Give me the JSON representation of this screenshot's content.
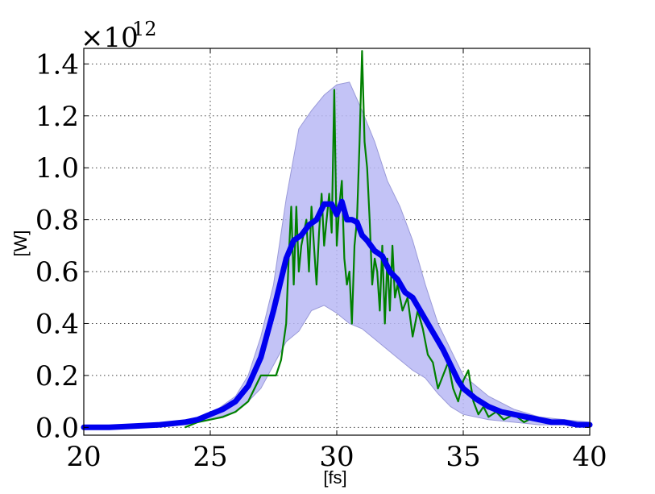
{
  "chart_data": {
    "type": "line",
    "title": "",
    "xlabel": "[fs]",
    "ylabel": "[W]",
    "y_offset_label": "×10",
    "y_offset_exponent": "12",
    "xlim": [
      20,
      40
    ],
    "ylim": [
      -0.03,
      1.46
    ],
    "xticks": [
      20,
      25,
      30,
      35,
      40
    ],
    "xtick_labels": [
      "20",
      "25",
      "30",
      "35",
      "40"
    ],
    "yticks": [
      0.0,
      0.2,
      0.4,
      0.6,
      0.8,
      1.0,
      1.2,
      1.4
    ],
    "ytick_labels": [
      "0.0",
      "0.2",
      "0.4",
      "0.6",
      "0.8",
      "1.0",
      "1.2",
      "1.4"
    ],
    "grid": true,
    "colors": {
      "band": "#b8b8f5",
      "mean": "#0000ee",
      "single": "#008000"
    },
    "series": [
      {
        "role": "band",
        "x": [
          20,
          22,
          24,
          25,
          26,
          26.5,
          27,
          27.5,
          28,
          28.5,
          29,
          29.5,
          30,
          30.5,
          31,
          31.5,
          32,
          32.5,
          33,
          33.5,
          34,
          34.5,
          35,
          36,
          37,
          38,
          39,
          40
        ],
        "lower": [
          0,
          0,
          0.01,
          0.03,
          0.06,
          0.1,
          0.15,
          0.24,
          0.33,
          0.37,
          0.45,
          0.47,
          0.44,
          0.4,
          0.38,
          0.34,
          0.3,
          0.26,
          0.22,
          0.19,
          0.13,
          0.08,
          0.05,
          0.03,
          0.02,
          0.01,
          0.01,
          0.01
        ],
        "upper": [
          0,
          0.01,
          0.02,
          0.05,
          0.12,
          0.2,
          0.35,
          0.55,
          0.88,
          1.15,
          1.22,
          1.28,
          1.32,
          1.33,
          1.22,
          1.1,
          0.95,
          0.85,
          0.72,
          0.55,
          0.4,
          0.3,
          0.2,
          0.12,
          0.07,
          0.04,
          0.03,
          0.02
        ]
      },
      {
        "role": "single",
        "x": [
          24.0,
          24.5,
          25.0,
          25.5,
          26.0,
          26.5,
          27.0,
          27.3,
          27.6,
          27.8,
          28.0,
          28.1,
          28.2,
          28.3,
          28.4,
          28.5,
          28.6,
          28.7,
          28.8,
          28.9,
          29.0,
          29.1,
          29.2,
          29.3,
          29.4,
          29.5,
          29.6,
          29.7,
          29.8,
          29.9,
          30.0,
          30.1,
          30.2,
          30.3,
          30.4,
          30.5,
          30.6,
          30.7,
          30.8,
          30.9,
          31.0,
          31.1,
          31.2,
          31.3,
          31.4,
          31.5,
          31.6,
          31.7,
          31.8,
          31.9,
          32.0,
          32.1,
          32.2,
          32.3,
          32.4,
          32.6,
          32.8,
          33.0,
          33.2,
          33.4,
          33.6,
          33.8,
          34.0,
          34.2,
          34.4,
          34.6,
          34.8,
          35.0,
          35.2,
          35.4,
          35.6,
          35.8,
          36.0,
          36.3,
          36.6,
          37.0,
          37.4,
          37.8,
          38.2,
          38.6,
          39.0,
          39.5,
          40.0
        ],
        "y": [
          0.0,
          0.02,
          0.03,
          0.04,
          0.06,
          0.1,
          0.2,
          0.2,
          0.2,
          0.26,
          0.4,
          0.65,
          0.85,
          0.55,
          0.85,
          0.6,
          0.7,
          0.75,
          0.8,
          0.6,
          0.85,
          0.7,
          0.55,
          0.75,
          0.9,
          0.7,
          0.8,
          0.9,
          0.75,
          1.3,
          0.7,
          0.85,
          0.95,
          0.65,
          0.55,
          0.6,
          0.4,
          0.7,
          0.8,
          1.1,
          1.45,
          1.1,
          1.0,
          0.8,
          0.55,
          0.65,
          0.6,
          0.45,
          0.7,
          0.4,
          0.65,
          0.45,
          0.7,
          0.5,
          0.55,
          0.45,
          0.5,
          0.35,
          0.45,
          0.38,
          0.28,
          0.25,
          0.15,
          0.2,
          0.25,
          0.15,
          0.1,
          0.18,
          0.22,
          0.1,
          0.05,
          0.08,
          0.04,
          0.06,
          0.03,
          0.05,
          0.02,
          0.04,
          0.03,
          0.02,
          0.02,
          0.01,
          0.01
        ]
      },
      {
        "role": "mean",
        "x": [
          20,
          21,
          22,
          23,
          24,
          24.5,
          25,
          25.5,
          26,
          26.5,
          27,
          27.5,
          28,
          28.3,
          28.6,
          28.9,
          29.2,
          29.5,
          29.8,
          30.0,
          30.2,
          30.4,
          30.6,
          30.8,
          31.0,
          31.2,
          31.5,
          31.8,
          32.1,
          32.4,
          32.7,
          33.0,
          33.3,
          33.6,
          33.9,
          34.2,
          34.5,
          34.8,
          35.0,
          35.5,
          36.0,
          36.5,
          37.0,
          37.5,
          38.0,
          38.5,
          39.0,
          39.5,
          40.0
        ],
        "y": [
          0.0,
          0.0,
          0.005,
          0.01,
          0.02,
          0.03,
          0.05,
          0.07,
          0.1,
          0.16,
          0.27,
          0.45,
          0.65,
          0.72,
          0.74,
          0.78,
          0.8,
          0.86,
          0.86,
          0.82,
          0.87,
          0.8,
          0.8,
          0.79,
          0.74,
          0.72,
          0.68,
          0.66,
          0.6,
          0.57,
          0.52,
          0.5,
          0.45,
          0.4,
          0.35,
          0.3,
          0.24,
          0.18,
          0.15,
          0.11,
          0.08,
          0.06,
          0.05,
          0.04,
          0.03,
          0.02,
          0.02,
          0.01,
          0.01
        ]
      }
    ]
  }
}
